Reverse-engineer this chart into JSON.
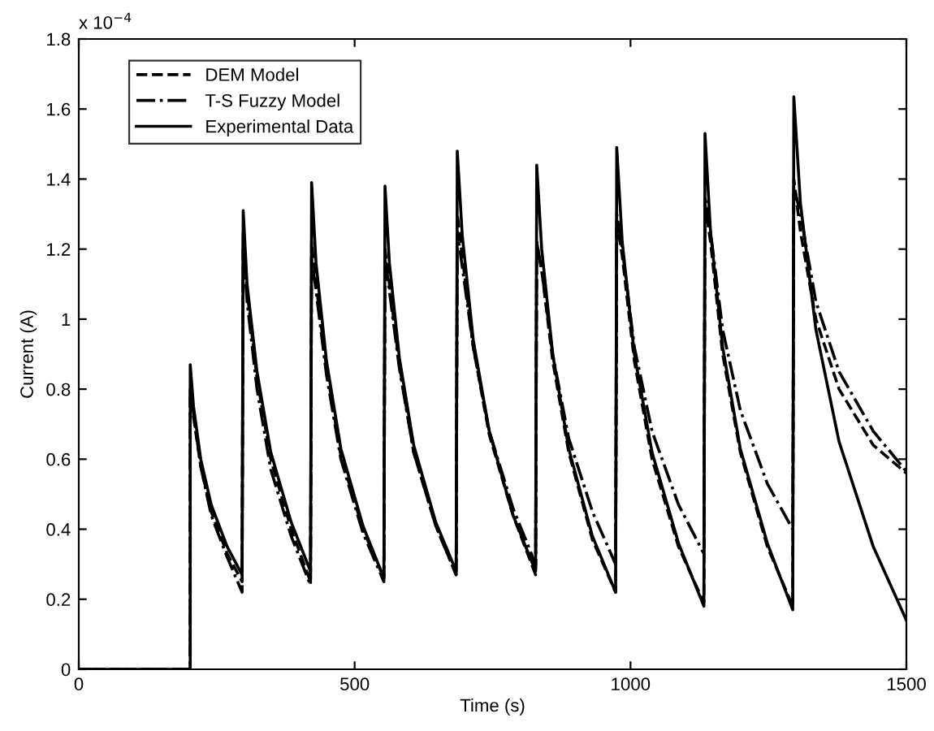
{
  "chart_data": {
    "type": "line",
    "xlabel": "Time (s)",
    "ylabel": "Current (A)",
    "annotations": [
      "x 10$^{−4}$"
    ],
    "xlim": [
      0,
      1500
    ],
    "xticks": [
      0,
      500,
      1000,
      1500
    ],
    "ylim": [
      0,
      1.8
    ],
    "yticks": [
      0,
      0.2,
      0.4,
      0.6,
      0.8,
      1,
      1.2,
      1.4,
      1.6,
      1.8
    ],
    "grid": false,
    "legend": "top left",
    "marker": "none",
    "series": [
      {
        "name": "DEM Model",
        "color": "#000000",
        "line_style": "dashed",
        "x": [
          0,
          202,
          202,
          208,
          221,
          240,
          269,
          296,
          298,
          305,
          323,
          348,
          385,
          420,
          422,
          430,
          449,
          475,
          515,
          553,
          555,
          563,
          581,
          607,
          647,
          684,
          686,
          695,
          715,
          744,
          787,
          828,
          830,
          839,
          859,
          888,
          931,
          973,
          975,
          985,
          1007,
          1039,
          1087,
          1133,
          1135,
          1145,
          1167,
          1199,
          1248,
          1294,
          1296,
          1308,
          1336,
          1378,
          1440,
          1500
        ],
        "values": [
          0,
          0,
          0.78,
          0.72,
          0.58,
          0.45,
          0.33,
          0.25,
          1.25,
          1.08,
          0.83,
          0.6,
          0.4,
          0.25,
          1.22,
          1.1,
          0.86,
          0.61,
          0.4,
          0.26,
          1.2,
          1.1,
          0.87,
          0.62,
          0.41,
          0.27,
          1.3,
          1.18,
          0.92,
          0.67,
          0.44,
          0.27,
          1.22,
          1.14,
          0.88,
          0.62,
          0.37,
          0.22,
          1.28,
          1.18,
          0.88,
          0.6,
          0.35,
          0.19,
          1.33,
          1.22,
          0.9,
          0.62,
          0.35,
          0.18,
          1.4,
          1.25,
          1.0,
          0.8,
          0.64,
          0.56
        ]
      },
      {
        "name": "T-S Fuzzy Model",
        "color": "#000000",
        "line_style": "dashdot",
        "x": [
          0,
          202,
          202,
          208,
          221,
          240,
          269,
          296,
          298,
          305,
          323,
          348,
          385,
          420,
          422,
          430,
          449,
          475,
          515,
          553,
          555,
          563,
          581,
          607,
          647,
          684,
          686,
          695,
          715,
          744,
          787,
          828,
          830,
          839,
          859,
          888,
          931,
          973,
          975,
          985,
          1007,
          1039,
          1087,
          1133,
          1135,
          1145,
          1167,
          1199,
          1248,
          1294,
          1296,
          1308,
          1336,
          1378,
          1440,
          1500
        ],
        "values": [
          0,
          0,
          0.8,
          0.73,
          0.58,
          0.44,
          0.32,
          0.22,
          1.22,
          1.05,
          0.8,
          0.57,
          0.38,
          0.24,
          1.18,
          1.08,
          0.84,
          0.6,
          0.39,
          0.25,
          1.18,
          1.08,
          0.86,
          0.62,
          0.41,
          0.27,
          1.25,
          1.15,
          0.92,
          0.68,
          0.46,
          0.3,
          1.22,
          1.14,
          0.9,
          0.66,
          0.45,
          0.3,
          1.3,
          1.2,
          0.92,
          0.68,
          0.47,
          0.33,
          1.35,
          1.25,
          0.97,
          0.74,
          0.53,
          0.4,
          1.38,
          1.3,
          1.05,
          0.85,
          0.68,
          0.565
        ]
      },
      {
        "name": "Experimental Data",
        "color": "#000000",
        "line_style": "solid",
        "x": [
          0,
          202,
          202,
          208,
          221,
          240,
          269,
          296,
          298,
          305,
          323,
          348,
          385,
          420,
          422,
          430,
          449,
          475,
          515,
          553,
          555,
          563,
          581,
          607,
          647,
          684,
          686,
          695,
          715,
          744,
          787,
          828,
          830,
          839,
          859,
          888,
          931,
          973,
          975,
          985,
          1007,
          1039,
          1087,
          1133,
          1135,
          1145,
          1167,
          1199,
          1248,
          1294,
          1296,
          1308,
          1336,
          1378,
          1440,
          1500
        ],
        "values": [
          0,
          0,
          0.87,
          0.75,
          0.6,
          0.47,
          0.35,
          0.27,
          1.31,
          1.1,
          0.85,
          0.62,
          0.42,
          0.28,
          1.39,
          1.16,
          0.88,
          0.63,
          0.41,
          0.26,
          1.38,
          1.16,
          0.89,
          0.64,
          0.42,
          0.28,
          1.48,
          1.24,
          0.94,
          0.68,
          0.44,
          0.28,
          1.44,
          1.2,
          0.9,
          0.63,
          0.38,
          0.22,
          1.49,
          1.22,
          0.9,
          0.62,
          0.36,
          0.18,
          1.53,
          1.25,
          0.92,
          0.63,
          0.36,
          0.17,
          1.635,
          1.33,
          0.97,
          0.65,
          0.35,
          0.14
        ]
      }
    ]
  }
}
